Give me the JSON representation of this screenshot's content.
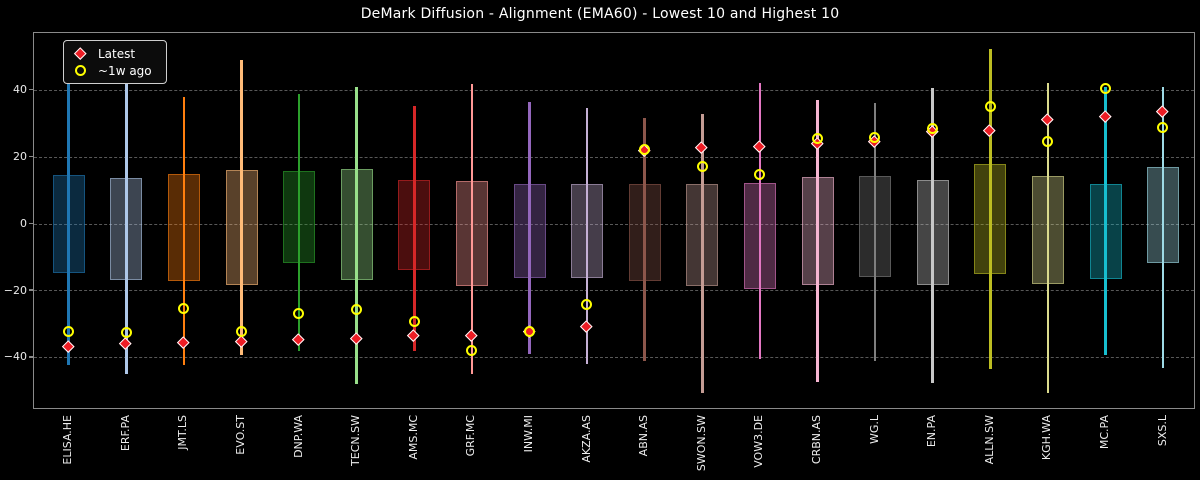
{
  "title": "DeMark Diffusion - Alignment (EMA60) - Lowest 10 and Highest 10",
  "legend": {
    "items": [
      {
        "label": "Latest",
        "marker": "diamond",
        "color": "#ed1c24"
      },
      {
        "label": "~1w ago",
        "marker": "circle",
        "color": "#ffff00"
      }
    ],
    "position": "upper-left"
  },
  "colors": {
    "background": "#000000",
    "text": "#ffffff",
    "grid": "#585858",
    "spine": "#8a8a8a",
    "latest_marker": "#ed1c24",
    "latest_marker_edge": "#ffffff",
    "week_marker": "#ffff00"
  },
  "axes": {
    "ylim": [
      -55.6,
      57.3
    ],
    "yticks": [
      40,
      20,
      0,
      -20,
      -40
    ],
    "ytick_labels": [
      "40",
      "20",
      "0",
      "−20",
      "−40"
    ],
    "grid": "horizontal-dashed",
    "x_tick_rotation": 90
  },
  "chart_data": {
    "type": "boxwhisker-range",
    "title": "DeMark Diffusion - Alignment (EMA60) - Lowest 10 and Highest 10",
    "series_labels": {
      "latest": "Latest",
      "week_ago": "~1w ago"
    },
    "categories": [
      "ELISA.HE",
      "ERF.PA",
      "JMT.LS",
      "EVO.ST",
      "DNP.WA",
      "TECN.SW",
      "AMS.MC",
      "GRF.MC",
      "INW.MI",
      "AKZA.AS",
      "ABN.AS",
      "SWON.SW",
      "VOW3.DE",
      "CRBN.AS",
      "WG.L",
      "EN.PA",
      "ALLN.SW",
      "KGH.WA",
      "MC.PA",
      "SXS.L"
    ],
    "points": [
      {
        "ticker": "ELISA.HE",
        "color": "#1f77b4",
        "whisker_low": -42.0,
        "whisker_high": 43.0,
        "box_low": -14.5,
        "box_high": 14.7,
        "latest": -36.7,
        "week_ago": -32.2
      },
      {
        "ticker": "ERF.PA",
        "color": "#aec7e8",
        "whisker_low": -44.7,
        "whisker_high": 43.0,
        "box_low": -16.7,
        "box_high": 14.0,
        "latest": -35.7,
        "week_ago": -32.5
      },
      {
        "ticker": "JMT.LS",
        "color": "#ff7f0e",
        "whisker_low": -42.0,
        "whisker_high": 38.2,
        "box_low": -17.0,
        "box_high": 15.0,
        "latest": -35.5,
        "week_ago": -25.4
      },
      {
        "ticker": "EVO.ST",
        "color": "#ffbb78",
        "whisker_low": -39.1,
        "whisker_high": 49.1,
        "box_low": -18.1,
        "box_high": 16.2,
        "latest": -35.1,
        "week_ago": -32.2
      },
      {
        "ticker": "DNP.WA",
        "color": "#2ca02c",
        "whisker_low": -37.9,
        "whisker_high": 38.9,
        "box_low": -11.5,
        "box_high": 16.0,
        "latest": -34.6,
        "week_ago": -26.9
      },
      {
        "ticker": "TECN.SW",
        "color": "#98df8a",
        "whisker_low": -47.9,
        "whisker_high": 41.1,
        "box_low": -16.7,
        "box_high": 16.5,
        "latest": -34.2,
        "week_ago": -25.7
      },
      {
        "ticker": "AMS.MC",
        "color": "#d62728",
        "whisker_low": -37.9,
        "whisker_high": 35.4,
        "box_low": -13.7,
        "box_high": 13.2,
        "latest": -33.3,
        "week_ago": -29.1
      },
      {
        "ticker": "GRF.MC",
        "color": "#ff9896",
        "whisker_low": -44.9,
        "whisker_high": 41.9,
        "box_low": -18.4,
        "box_high": 13.0,
        "latest": -33.4,
        "week_ago": -37.9
      },
      {
        "ticker": "INW.MI",
        "color": "#9467bd",
        "whisker_low": -38.7,
        "whisker_high": 36.6,
        "box_low": -16.0,
        "box_high": 12.0,
        "latest": -32.1,
        "week_ago": -32.1
      },
      {
        "ticker": "AKZA.AS",
        "color": "#c5b0d5",
        "whisker_low": -41.9,
        "whisker_high": 34.9,
        "box_low": -16.0,
        "box_high": 12.2,
        "latest": -30.6,
        "week_ago": -24.2
      },
      {
        "ticker": "ABN.AS",
        "color": "#8c564b",
        "whisker_low": -40.9,
        "whisker_high": 31.8,
        "box_low": -16.9,
        "box_high": 12.2,
        "latest": 22.0,
        "week_ago": 22.5
      },
      {
        "ticker": "SWON.SW",
        "color": "#c49c94",
        "whisker_low": -50.4,
        "whisker_high": 33.1,
        "box_low": -18.4,
        "box_high": 12.2,
        "latest": 22.8,
        "week_ago": 17.2
      },
      {
        "ticker": "VOW3.DE",
        "color": "#e377c2",
        "whisker_low": -40.4,
        "whisker_high": 42.4,
        "box_low": -19.4,
        "box_high": 12.3,
        "latest": 23.3,
        "week_ago": 14.8
      },
      {
        "ticker": "CRBN.AS",
        "color": "#f7b6d2",
        "whisker_low": -47.2,
        "whisker_high": 37.1,
        "box_low": -18.2,
        "box_high": 14.3,
        "latest": 24.2,
        "week_ago": 25.5
      },
      {
        "ticker": "WG.L",
        "color": "#7f7f7f",
        "whisker_low": -40.9,
        "whisker_high": 36.4,
        "box_low": -15.7,
        "box_high": 14.5,
        "latest": 24.7,
        "week_ago": 26.0
      },
      {
        "ticker": "EN.PA",
        "color": "#c7c7c7",
        "whisker_low": -47.4,
        "whisker_high": 40.7,
        "box_low": -18.2,
        "box_high": 13.2,
        "latest": 27.7,
        "week_ago": 28.7
      },
      {
        "ticker": "ALLN.SW",
        "color": "#bcbd22",
        "whisker_low": -43.2,
        "whisker_high": 52.4,
        "box_low": -14.8,
        "box_high": 18.0,
        "latest": 27.9,
        "week_ago": 35.1
      },
      {
        "ticker": "KGH.WA",
        "color": "#dbdb8d",
        "whisker_low": -50.4,
        "whisker_high": 42.4,
        "box_low": -17.8,
        "box_high": 14.6,
        "latest": 31.4,
        "week_ago": 24.6
      },
      {
        "ticker": "MC.PA",
        "color": "#17becf",
        "whisker_low": -39.1,
        "whisker_high": 41.0,
        "box_low": -16.4,
        "box_high": 12.0,
        "latest": 32.3,
        "week_ago": 40.7
      },
      {
        "ticker": "SXS.L",
        "color": "#9edae5",
        "whisker_low": -42.9,
        "whisker_high": 41.0,
        "box_low": -11.5,
        "box_high": 17.2,
        "latest": 33.6,
        "week_ago": 28.8
      }
    ]
  }
}
